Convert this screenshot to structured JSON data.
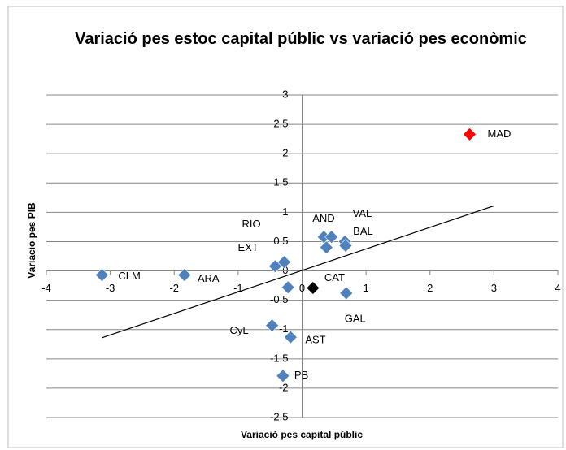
{
  "chart_data": {
    "type": "scatter",
    "title": "Variació pes estoc capital públic vs variació pes econòmic",
    "x_label": "Variació pes capital públic",
    "y_label": "Variacio pes PIB",
    "x": [
      2.62,
      -3.13,
      -1.84,
      -0.42,
      -0.28,
      0.34,
      0.46,
      0.67,
      0.68,
      0.38,
      -0.22,
      0.17,
      0.69,
      -0.47,
      -0.18,
      -0.3
    ],
    "y": [
      2.33,
      -0.07,
      -0.07,
      0.08,
      0.15,
      0.58,
      0.58,
      0.5,
      0.43,
      0.4,
      -0.28,
      -0.29,
      -0.38,
      -0.93,
      -1.13,
      -1.79
    ],
    "labels": [
      "MAD",
      "CLM",
      "ARA",
      "EXT",
      "RIO",
      "AND",
      "VAL",
      "BAL",
      null,
      null,
      null,
      "CAT",
      "GAL",
      "CyL",
      "AST",
      "PB"
    ],
    "colors": [
      "#ff0000",
      "#4f81bd",
      "#4f81bd",
      "#4f81bd",
      "#4f81bd",
      "#4f81bd",
      "#4f81bd",
      "#4f81bd",
      "#4f81bd",
      "#4f81bd",
      "#4f81bd",
      "#000000",
      "#4f81bd",
      "#4f81bd",
      "#4f81bd",
      "#4f81bd"
    ],
    "trendline": {
      "x": [
        -3.13,
        3
      ],
      "y": [
        -1.14,
        1.11
      ]
    },
    "xlim": [
      -4,
      4
    ],
    "xticks": [
      -4,
      -3,
      -2,
      -1,
      0,
      1,
      2,
      3,
      4
    ],
    "ylim": [
      -2.5,
      3
    ],
    "yticks": [
      {
        "value": -2.5,
        "label": "-2,5"
      },
      -2,
      {
        "value": -1.5,
        "label": "-1,5"
      },
      -1,
      {
        "value": -0.5,
        "label": "-0,5"
      },
      0,
      {
        "value": 0.5,
        "label": "0,5"
      },
      1,
      {
        "value": 1.5,
        "label": "1,5"
      },
      2,
      {
        "value": 2.5,
        "label": "2,5"
      },
      3
    ],
    "grid": true
  }
}
